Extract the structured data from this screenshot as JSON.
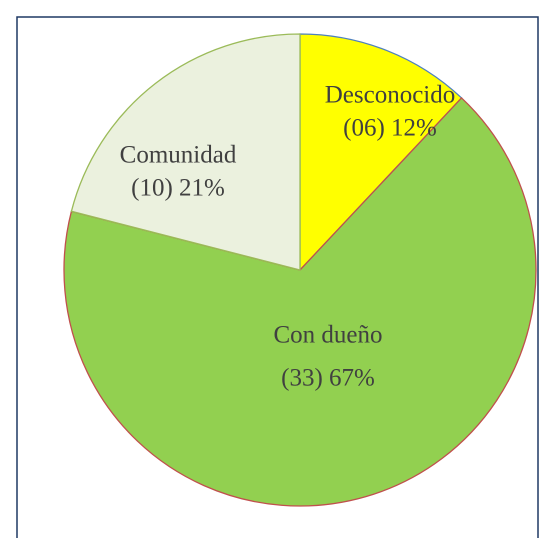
{
  "chart_data": {
    "type": "pie",
    "categories": [
      "Desconocido",
      "Con dueño",
      "Comunidad"
    ],
    "values": [
      12,
      67,
      21
    ],
    "value_labels": [
      "(06) 12%",
      "(33) 67%",
      "(10) 21%"
    ],
    "colors": [
      "#ffff00",
      "#92d050",
      "#ebf1de"
    ]
  }
}
